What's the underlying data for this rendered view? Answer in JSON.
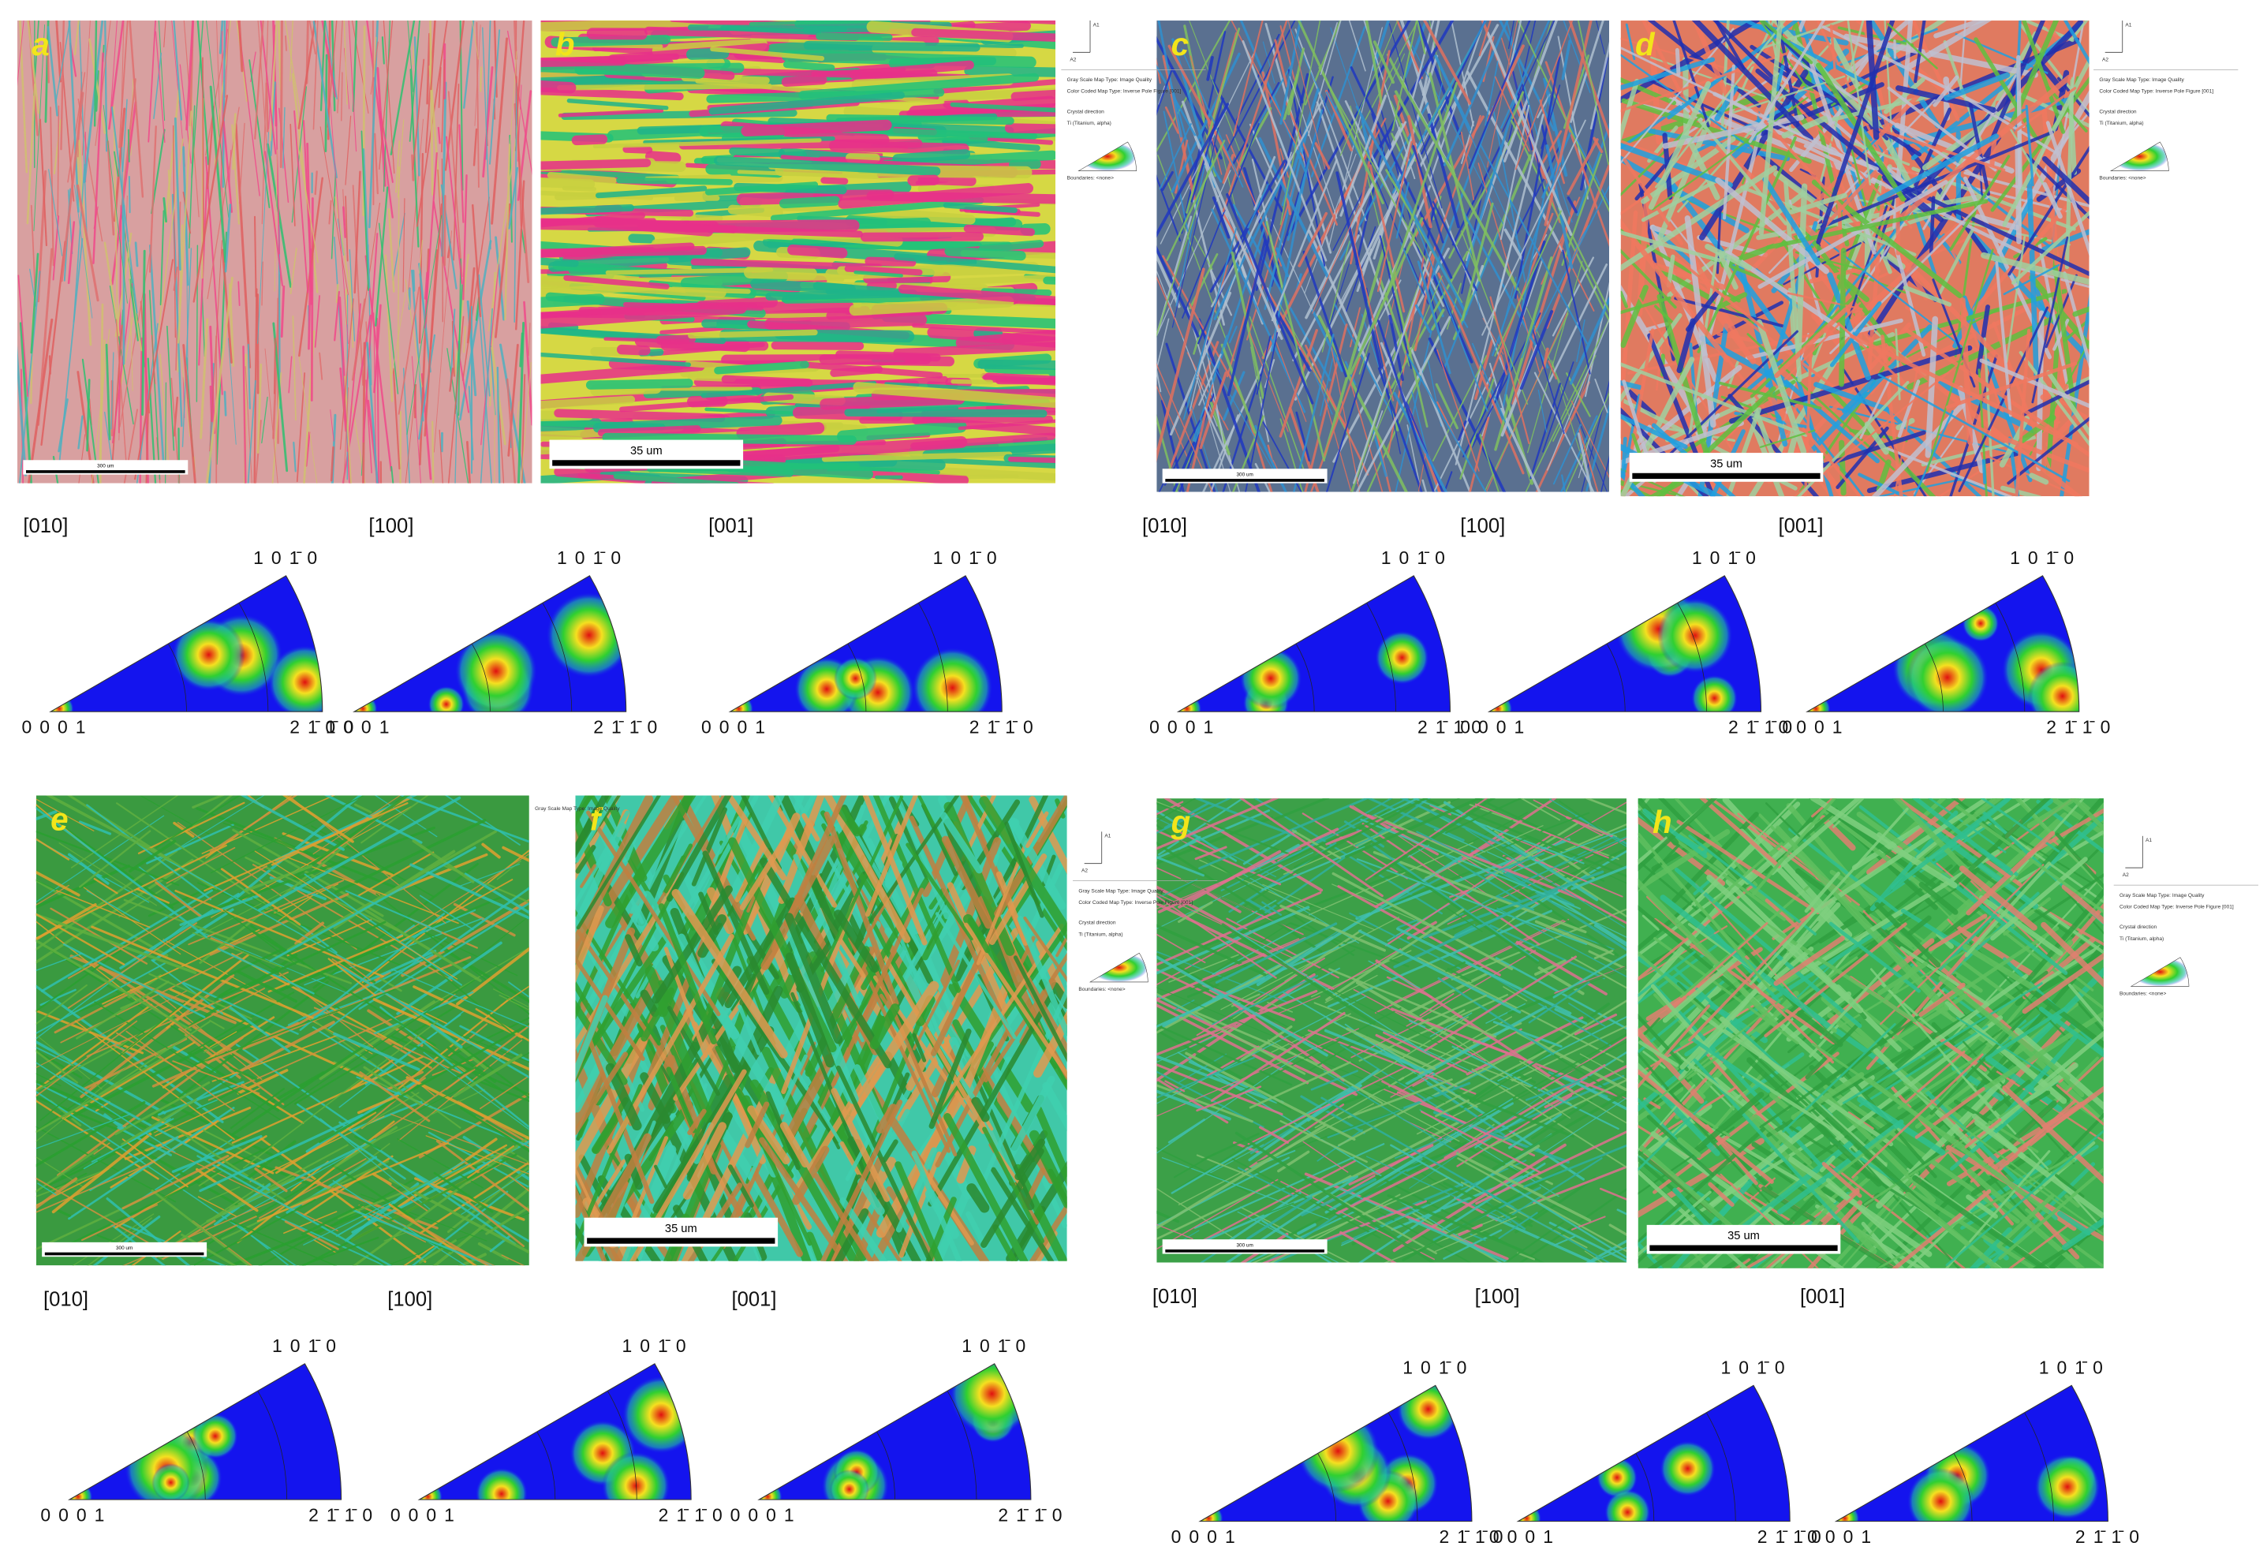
{
  "panels": [
    {
      "letter": "a",
      "scale_bar": "300 um"
    },
    {
      "letter": "b",
      "scale_bar": "35 um"
    },
    {
      "letter": "c",
      "scale_bar": "300 um"
    },
    {
      "letter": "d",
      "scale_bar": "35 um"
    },
    {
      "letter": "e",
      "scale_bar": "300 um"
    },
    {
      "letter": "f",
      "scale_bar": "35 um"
    },
    {
      "letter": "g",
      "scale_bar": "300 um"
    },
    {
      "letter": "h",
      "scale_bar": "35 um"
    }
  ],
  "groups": [
    {
      "directions": [
        "[010]",
        "[100]",
        "[001]"
      ]
    },
    {
      "directions": [
        "[010]",
        "[100]",
        "[001]"
      ]
    },
    {
      "directions": [
        "[010]",
        "[100]",
        "[001]"
      ]
    },
    {
      "directions": [
        "[010]",
        "[100]",
        "[001]"
      ]
    }
  ],
  "ipf_labels": {
    "top": "1 0 1̄ 0",
    "origin": "0 0 0 1",
    "right": "2 1̄ 1̄ 0"
  },
  "legend": {
    "axes": [
      "A1",
      "A2"
    ],
    "lines": [
      "Gray Scale Map Type: Image Quality",
      "Color Coded Map Type: Inverse Pole Figure [001]",
      "Crystal direction",
      "Ti (Titanium, alpha)",
      "Boundaries: <none>"
    ]
  }
}
